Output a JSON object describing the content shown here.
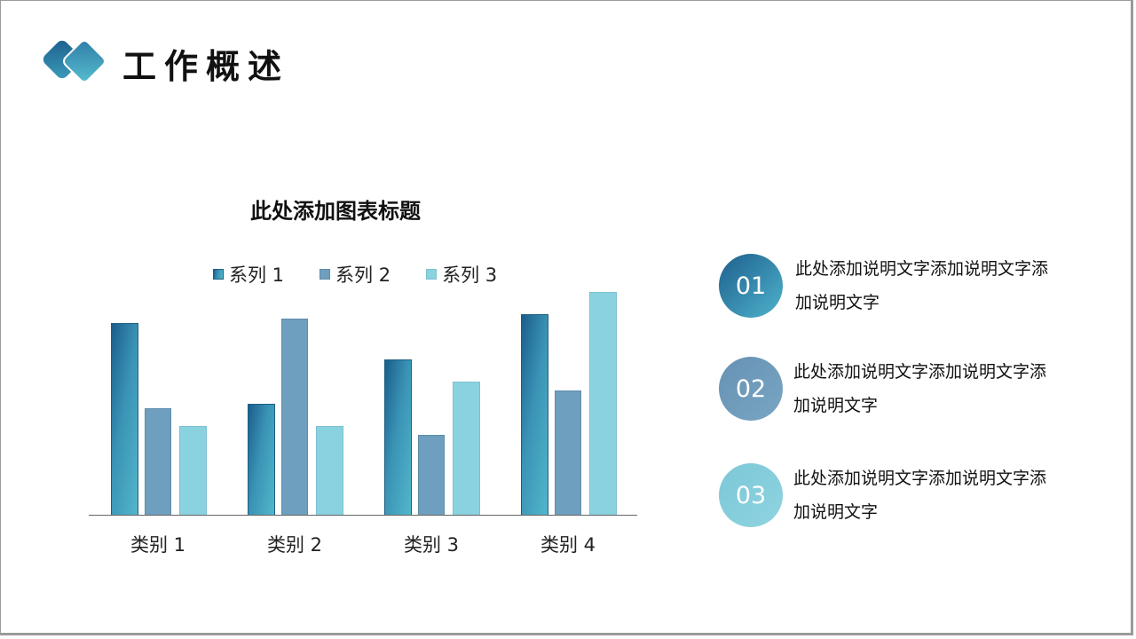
{
  "header": {
    "title": "工作概述",
    "logo_icon": "double-diamond-icon"
  },
  "chart_data": {
    "type": "bar",
    "title": "此处添加图表标题",
    "categories": [
      "类别 1",
      "类别 2",
      "类别 3",
      "类别 4"
    ],
    "series": [
      {
        "name": "系列 1",
        "values": [
          4.3,
          2.5,
          3.5,
          4.5
        ],
        "color": "#2a7fa8"
      },
      {
        "name": "系列 2",
        "values": [
          2.4,
          4.4,
          1.8,
          2.8
        ],
        "color": "#6f9fbe"
      },
      {
        "name": "系列 3",
        "values": [
          2,
          2,
          3,
          5
        ],
        "color": "#8ad2df"
      }
    ],
    "xlabel": "",
    "ylabel": "",
    "ylim": [
      0,
      5.6
    ],
    "grid": false,
    "legend_position": "top"
  },
  "items": [
    {
      "number": "01",
      "text": "此处添加说明文字添加说明文字添加说明文字"
    },
    {
      "number": "02",
      "text": "此处添加说明文字添加说明文字添加说明文字"
    },
    {
      "number": "03",
      "text": "此处添加说明文字添加说明文字添加说明文字"
    }
  ]
}
